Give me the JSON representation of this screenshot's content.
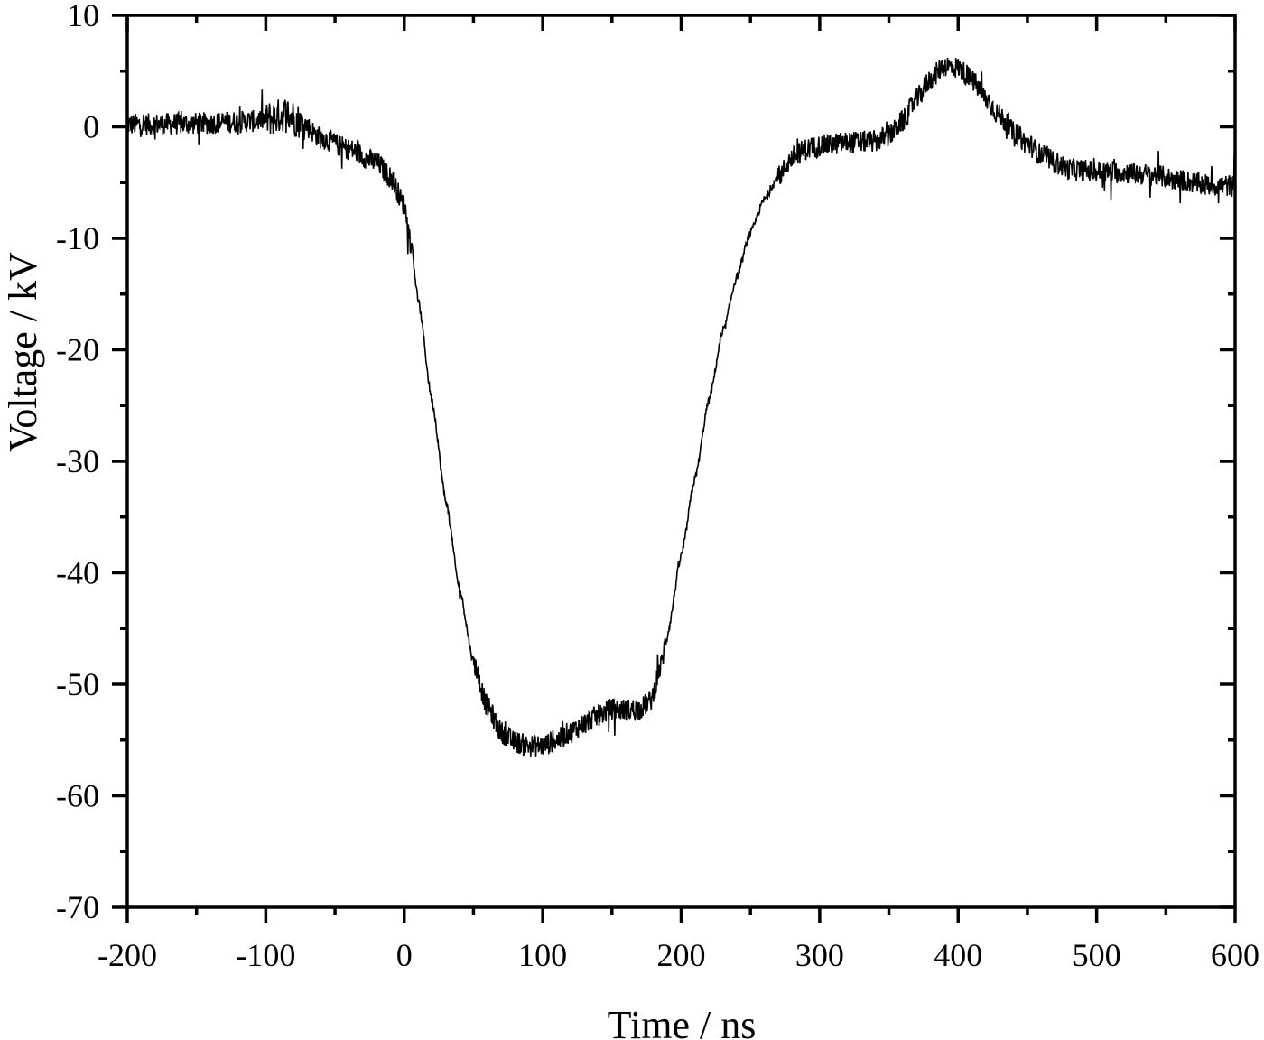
{
  "chart_data": {
    "type": "line",
    "title": "",
    "xlabel": "Time / ns",
    "ylabel": "Voltage / kV",
    "xlim": [
      -200,
      600
    ],
    "ylim": [
      -70,
      10
    ],
    "x_ticks": [
      -200,
      -100,
      0,
      100,
      200,
      300,
      400,
      500,
      600
    ],
    "y_ticks": [
      10,
      0,
      -10,
      -20,
      -30,
      -40,
      -50,
      -60,
      -70
    ],
    "x_tick_labels": [
      "-200",
      "-100",
      "0",
      "100",
      "200",
      "300",
      "400",
      "500",
      "600"
    ],
    "y_tick_labels": [
      "10",
      "0",
      "-10",
      "-20",
      "-30",
      "-40",
      "-50",
      "-60",
      "-70"
    ],
    "grid": false,
    "legend": null,
    "line_color": "#000000",
    "series": [
      {
        "name": "Voltage",
        "noise_amplitude_kv": 1.0,
        "x": [
          -200,
          -150,
          -110,
          -95,
          -85,
          -75,
          -60,
          -40,
          -20,
          -10,
          0,
          5,
          10,
          20,
          30,
          40,
          50,
          60,
          70,
          80,
          90,
          100,
          110,
          120,
          130,
          140,
          150,
          160,
          170,
          178,
          185,
          190,
          200,
          210,
          220,
          230,
          240,
          250,
          260,
          270,
          280,
          290,
          300,
          320,
          340,
          350,
          360,
          370,
          380,
          390,
          400,
          410,
          420,
          430,
          440,
          450,
          460,
          470,
          480,
          500,
          520,
          540,
          560,
          580,
          600
        ],
        "values": [
          0.2,
          0.3,
          0.5,
          0.8,
          1.2,
          0.5,
          -1.0,
          -2.0,
          -3.2,
          -4.5,
          -7.0,
          -10.5,
          -15.5,
          -24.5,
          -33.5,
          -41.5,
          -48.0,
          -52.0,
          -54.3,
          -55.2,
          -55.5,
          -55.5,
          -55.0,
          -54.3,
          -53.5,
          -52.8,
          -52.2,
          -52.3,
          -52.2,
          -51.5,
          -48.5,
          -45.5,
          -38.5,
          -31.5,
          -24.5,
          -18.5,
          -13.5,
          -9.5,
          -6.5,
          -4.5,
          -2.8,
          -2.0,
          -1.7,
          -1.4,
          -1.3,
          -0.8,
          0.5,
          2.5,
          4.3,
          5.5,
          5.3,
          4.2,
          2.5,
          1.0,
          -0.5,
          -1.5,
          -2.5,
          -3.2,
          -3.8,
          -4.0,
          -4.1,
          -4.3,
          -4.8,
          -5.2,
          -5.3
        ]
      }
    ]
  }
}
